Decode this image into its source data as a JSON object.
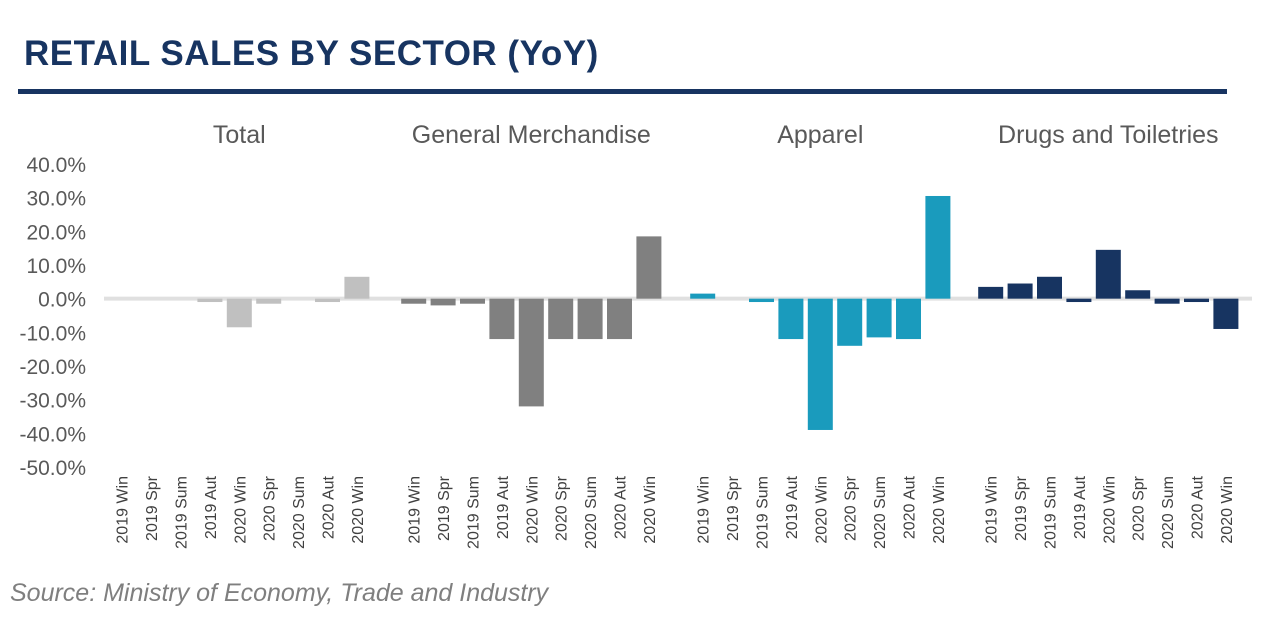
{
  "title": "RETAIL SALES BY SECTOR (YoY)",
  "source": "Source: Ministry of Economy, Trade and Industry",
  "chart_data": {
    "type": "bar",
    "ylim": [
      -0.5,
      0.4
    ],
    "yticks": [
      0.4,
      0.3,
      0.2,
      0.1,
      0.0,
      -0.1,
      -0.2,
      -0.3,
      -0.4,
      -0.5
    ],
    "ytick_labels": [
      "40.0%",
      "30.0%",
      "20.0%",
      "10.0%",
      "0.0%",
      "-10.0%",
      "-20.0%",
      "-30.0%",
      "-40.0%",
      "-50.0%"
    ],
    "grid": false,
    "legend": "none",
    "panels": [
      {
        "title": "Total",
        "color": "#c0c0c0",
        "categories": [
          "2019 Win",
          "2019 Spr",
          "2019 Sum",
          "2019 Aut",
          "2020 Win",
          "2020 Spr",
          "2020 Sum",
          "2020 Aut",
          "2020 Win"
        ],
        "values": [
          0.0,
          0.0,
          0.0,
          -0.01,
          -0.085,
          -0.015,
          0.0,
          -0.01,
          0.065
        ]
      },
      {
        "title": "General Merchandise",
        "color": "#808080",
        "categories": [
          "2019 Win",
          "2019 Spr",
          "2019 Sum",
          "2019 Aut",
          "2020 Win",
          "2020 Spr",
          "2020 Sum",
          "2020 Aut",
          "2020 Win"
        ],
        "values": [
          -0.015,
          -0.02,
          -0.015,
          -0.12,
          -0.32,
          -0.12,
          -0.12,
          -0.12,
          0.185
        ]
      },
      {
        "title": "Apparel",
        "color": "#1a9bbd",
        "categories": [
          "2019 Win",
          "2019 Spr",
          "2019 Sum",
          "2019 Aut",
          "2020 Win",
          "2020 Spr",
          "2020 Sum",
          "2020 Aut",
          "2020 Win"
        ],
        "values": [
          0.015,
          0.0,
          -0.01,
          -0.12,
          -0.39,
          -0.14,
          -0.115,
          -0.12,
          0.305
        ]
      },
      {
        "title": "Drugs and Toiletries",
        "color": "#173461",
        "categories": [
          "2019 Win",
          "2019 Spr",
          "2019 Sum",
          "2019 Aut",
          "2020 Win",
          "2020 Spr",
          "2020 Sum",
          "2020 Aut",
          "2020 Win"
        ],
        "values": [
          0.035,
          0.045,
          0.065,
          -0.01,
          0.145,
          0.025,
          -0.015,
          -0.01,
          -0.09
        ]
      }
    ]
  }
}
